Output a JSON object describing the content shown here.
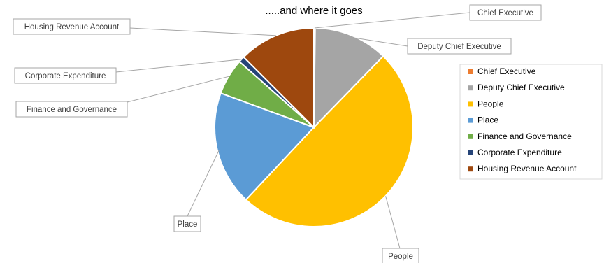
{
  "chart_data": {
    "type": "pie",
    "title": ".....and where it goes",
    "categories": [
      "Chief Executive",
      "Deputy Chief Executive",
      "People",
      "Place",
      "Finance and Governance",
      "Corporate Expenditure",
      "Housing Revenue Account"
    ],
    "values": [
      0.2,
      12.1,
      49.7,
      18.6,
      5.9,
      1.0,
      12.5
    ],
    "value_unit": "percent of total (estimated)",
    "colors": [
      "#ED7D31",
      "#A5A5A5",
      "#FFC000",
      "#5B9BD5",
      "#70AD47",
      "#264478",
      "#9E480E"
    ],
    "slice_border_color": "#ffffff",
    "start_angle_deg": 0,
    "direction": "clockwise from top",
    "legend_position": "right",
    "data_labels": "category names in callout boxes with leader lines"
  }
}
